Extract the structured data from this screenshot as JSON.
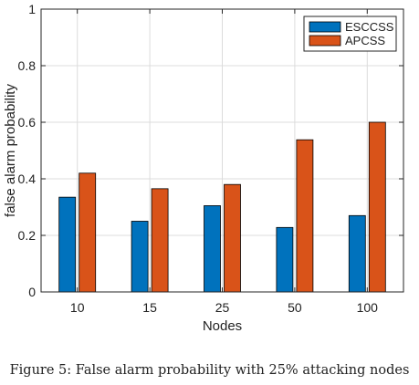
{
  "chart_data": {
    "type": "bar",
    "categories": [
      "10",
      "15",
      "25",
      "50",
      "100"
    ],
    "series": [
      {
        "name": "ESCCSS",
        "values": [
          0.335,
          0.25,
          0.305,
          0.228,
          0.27
        ],
        "color": "#0072BD"
      },
      {
        "name": "APCSS",
        "values": [
          0.42,
          0.365,
          0.38,
          0.538,
          0.6
        ],
        "color": "#D95319"
      }
    ],
    "xlabel": "Nodes",
    "ylabel": "false alarm probability",
    "ylim": [
      0,
      1
    ],
    "yticks": [
      "0",
      "0.2",
      "0.4",
      "0.6",
      "0.8",
      "1"
    ],
    "grid": true,
    "legend_position": "top-right"
  },
  "caption": "Figure 5: False alarm probability with 25% attacking nodes"
}
